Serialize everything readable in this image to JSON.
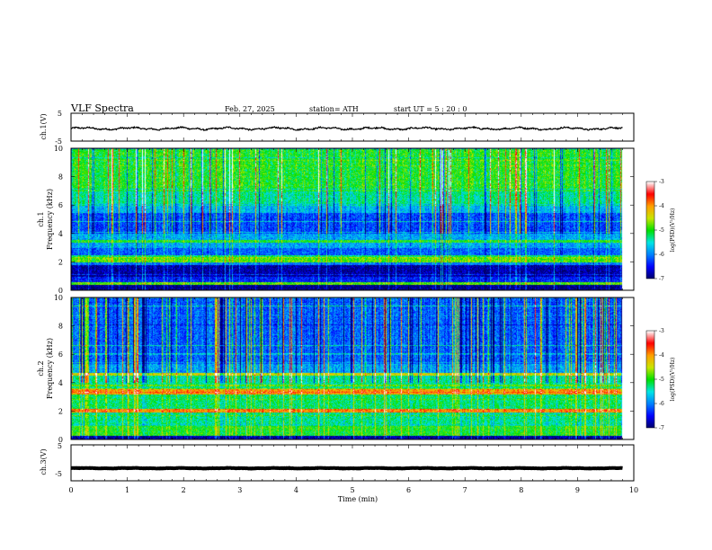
{
  "header": {
    "title": "VLF  Spectra",
    "date": "Feb. 27, 2025",
    "station": "station= ATH",
    "start_ut": "start  UT  =    5  : 20 : 0"
  },
  "colors": {
    "background": "#ffffff",
    "axis": "#000000",
    "colormap": [
      "#000066",
      "#0000ff",
      "#0080ff",
      "#00e5e5",
      "#00e000",
      "#c8e600",
      "#ffa000",
      "#ff0000",
      "#ffffff"
    ]
  },
  "chart_data": [
    {
      "type": "line",
      "id": "ch1",
      "ylabel": "ch.1(V)",
      "ylim": [
        -5,
        5
      ],
      "yticks": [
        "5",
        "-5"
      ],
      "xlim": [
        0,
        10
      ],
      "series": [
        {
          "mean": -0.5,
          "amplitude": 0.6
        }
      ]
    },
    {
      "type": "heatmap",
      "id": "ch1-spec",
      "ylabel_line1": "ch.1",
      "ylabel_line2": "Frequency  (kHz)",
      "ylim": [
        0,
        10
      ],
      "yticks": [
        "0",
        "2",
        "4",
        "6",
        "8",
        "10"
      ],
      "xlim": [
        0,
        10
      ],
      "data_end_min": 9.8,
      "bands": [
        {
          "f": [
            0,
            0.4
          ],
          "level": 0.02
        },
        {
          "f": [
            0.4,
            0.6
          ],
          "level": 0.55
        },
        {
          "f": [
            0.6,
            1.0
          ],
          "level": 0.15
        },
        {
          "f": [
            1.0,
            1.8
          ],
          "level": 0.05
        },
        {
          "f": [
            1.8,
            2.0
          ],
          "level": 0.25
        },
        {
          "f": [
            2.0,
            2.3
          ],
          "level": 0.55
        },
        {
          "f": [
            2.3,
            2.5
          ],
          "level": 0.45
        },
        {
          "f": [
            2.5,
            3.0
          ],
          "level": 0.22
        },
        {
          "f": [
            3.0,
            3.4
          ],
          "level": 0.3
        },
        {
          "f": [
            3.4,
            3.6
          ],
          "level": 0.5
        },
        {
          "f": [
            3.6,
            4.0
          ],
          "level": 0.3
        },
        {
          "f": [
            4.0,
            5.5
          ],
          "level": 0.2
        },
        {
          "f": [
            5.5,
            6.0
          ],
          "level": 0.32
        },
        {
          "f": [
            6.0,
            7.0
          ],
          "level": 0.42
        },
        {
          "f": [
            7.0,
            10.0
          ],
          "level": 0.5
        }
      ],
      "colorbar": {
        "label": "log(PSD)(V²/Hz)",
        "min": -7,
        "max": -3,
        "ticks": [
          "-3",
          "-4",
          "-5",
          "-6",
          "-7"
        ]
      }
    },
    {
      "type": "heatmap",
      "id": "ch2-spec",
      "ylabel_line1": "ch.2",
      "ylabel_line2": "Frequency  (kHz)",
      "ylim": [
        0,
        10
      ],
      "yticks": [
        "0",
        "2",
        "4",
        "6",
        "8",
        "10"
      ],
      "xlim": [
        0,
        10
      ],
      "data_end_min": 9.8,
      "bands": [
        {
          "f": [
            0,
            0.3
          ],
          "level": 0.05
        },
        {
          "f": [
            0.3,
            1.0
          ],
          "level": 0.5
        },
        {
          "f": [
            1.0,
            1.9
          ],
          "level": 0.42
        },
        {
          "f": [
            1.9,
            2.2
          ],
          "level": 0.78
        },
        {
          "f": [
            2.2,
            3.2
          ],
          "level": 0.45
        },
        {
          "f": [
            3.2,
            3.6
          ],
          "level": 0.75
        },
        {
          "f": [
            3.6,
            4.5
          ],
          "level": 0.42
        },
        {
          "f": [
            4.5,
            4.7
          ],
          "level": 0.65
        },
        {
          "f": [
            4.7,
            5.5
          ],
          "level": 0.3
        },
        {
          "f": [
            5.5,
            10.0
          ],
          "level": 0.22
        }
      ],
      "colorbar": {
        "label": "log(PSD)(V²/Hz)",
        "min": -7,
        "max": -3,
        "ticks": [
          "-3",
          "-4",
          "-5",
          "-6",
          "-7"
        ]
      }
    },
    {
      "type": "line",
      "id": "ch3",
      "ylabel": "ch.3(V)",
      "ylim": [
        -5,
        5
      ],
      "yticks": [
        "5",
        "-5"
      ],
      "xlim": [
        0,
        10
      ],
      "series": [
        {
          "mean": -1.5,
          "amplitude": 0.1
        }
      ]
    }
  ],
  "xaxis": {
    "label": "Time  (min)",
    "ticks": [
      "0",
      "1",
      "2",
      "3",
      "4",
      "5",
      "6",
      "7",
      "8",
      "9",
      "10"
    ]
  }
}
